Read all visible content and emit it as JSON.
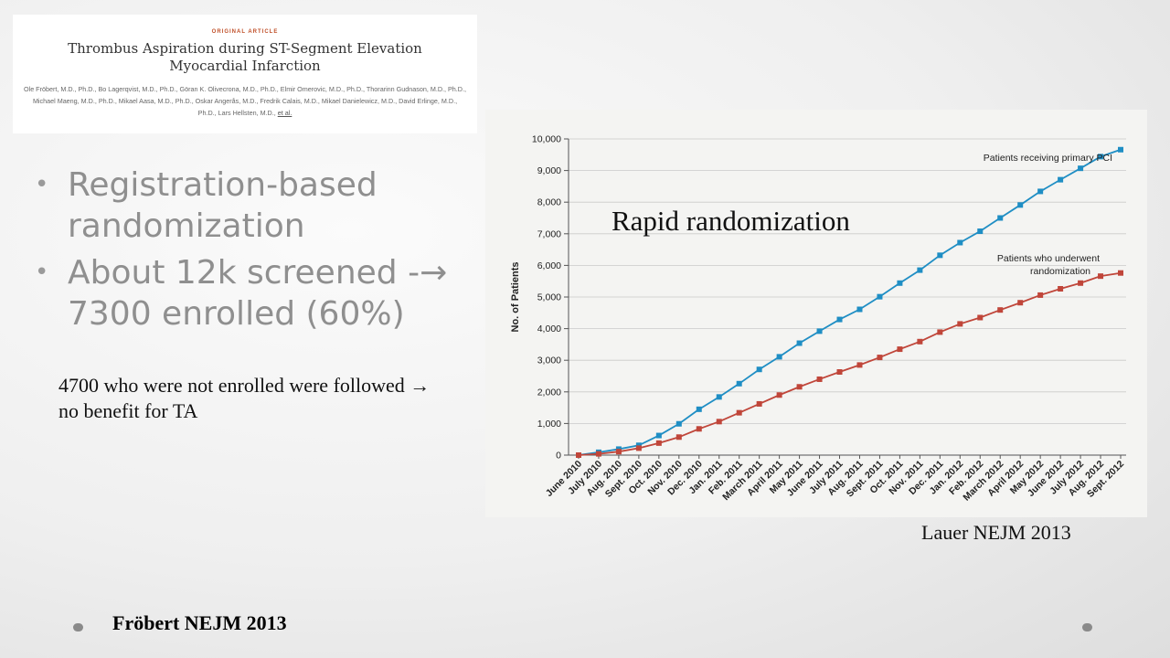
{
  "article": {
    "kicker": "ORIGINAL ARTICLE",
    "title": "Thrombus Aspiration during ST-Segment Elevation Myocardial Infarction",
    "authors": "Ole Fröbert, M.D., Ph.D., Bo Lagerqvist, M.D., Ph.D., Göran K. Olivecrona, M.D., Ph.D., Elmir Omerovic, M.D., Ph.D., Thorarinn Gudnason, M.D., Ph.D., Michael Maeng, M.D., Ph.D., Mikael Aasa, M.D., Ph.D., Oskar Angerås, M.D., Fredrik Calais, M.D., Mikael Danielewicz, M.D., David Erlinge, M.D., Ph.D., Lars Hellsten, M.D.,",
    "authors_link": "et al."
  },
  "bullets": [
    {
      "text": "Registration-based randomization"
    },
    {
      "text": "About 12k screened -→ 7300 enrolled (60%)"
    }
  ],
  "bullet_glyph": "•",
  "note": "4700 who were not enrolled  were followed → no benefit for TA",
  "chart_overlay_title": "Rapid randomization",
  "citations": {
    "right": "Lauer NEJM 2013",
    "left": "Fröbert NEJM 2013"
  },
  "chart_data": {
    "type": "line",
    "ylabel": "No. of Patients",
    "xlabel": "",
    "ylim": [
      0,
      10000
    ],
    "yticks": [
      0,
      1000,
      2000,
      3000,
      4000,
      5000,
      6000,
      7000,
      8000,
      9000,
      10000
    ],
    "ytick_labels": [
      "0",
      "1,000",
      "2,000",
      "3,000",
      "4,000",
      "5,000",
      "6,000",
      "7,000",
      "8,000",
      "9,000",
      "10,000"
    ],
    "grid": true,
    "categories": [
      "June 2010",
      "July 2010",
      "Aug. 2010",
      "Sept. 2010",
      "Oct. 2010",
      "Nov. 2010",
      "Dec. 2010",
      "Jan. 2011",
      "Feb. 2011",
      "March 2011",
      "April 2011",
      "May 2011",
      "June 2011",
      "July 2011",
      "Aug. 2011",
      "Sept. 2011",
      "Oct. 2011",
      "Nov. 2011",
      "Dec. 2011",
      "Jan. 2012",
      "Feb. 2012",
      "March 2012",
      "April 2012",
      "May 2012",
      "June 2012",
      "July 2012",
      "Aug. 2012",
      "Sept. 2012"
    ],
    "series": [
      {
        "name": "Patients receiving primary PCI",
        "color": "#1f8ec4",
        "values": [
          0,
          90,
          190,
          310,
          620,
          990,
          1450,
          1840,
          2260,
          2710,
          3110,
          3540,
          3920,
          4290,
          4610,
          5010,
          5440,
          5850,
          6320,
          6720,
          7080,
          7500,
          7910,
          8340,
          8710,
          9070,
          9440,
          9660
        ]
      },
      {
        "name": "Patients who underwent randomization",
        "color": "#c0463a",
        "values": [
          0,
          40,
          110,
          220,
          380,
          570,
          830,
          1060,
          1340,
          1620,
          1900,
          2160,
          2400,
          2630,
          2850,
          3090,
          3350,
          3590,
          3890,
          4150,
          4350,
          4590,
          4820,
          5060,
          5260,
          5440,
          5660,
          5760
        ]
      }
    ],
    "annotations": [
      {
        "text": "Patients receiving primary PCI",
        "series": 0
      },
      {
        "text": "Patients who underwent",
        "series": 1
      },
      {
        "text": "randomization",
        "series": 1
      }
    ]
  }
}
